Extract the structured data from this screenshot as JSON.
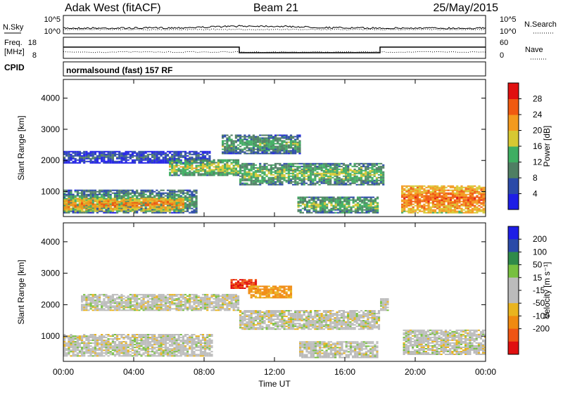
{
  "header": {
    "station": "Adak West (fitACF)",
    "beam": "Beam 21",
    "date": "25/May/2015"
  },
  "top_panels": {
    "nsky_label": "N.Sky",
    "nsearch_label": "N.Search",
    "noise_ticks": [
      "10^5",
      "10^0"
    ],
    "freq_label_1": "Freq.",
    "freq_label_2": "[MHz]",
    "freq_ticks": [
      "18",
      "8"
    ],
    "nave_label": "Nave",
    "nave_ticks": [
      "60",
      "0"
    ],
    "cpid_label": "CPID",
    "cpid_text": "normalsound (fast) 157 RF"
  },
  "colors": {
    "power": [
      "#1e1ee6",
      "#2b4aa8",
      "#4f7e63",
      "#3fae62",
      "#d7c832",
      "#f39a1d",
      "#f05a10",
      "#e01010"
    ],
    "velocity": [
      "#1e1ee6",
      "#2b4aa8",
      "#2f8a4a",
      "#77c040",
      "#bbbbbb",
      "#bbbbbb",
      "#e9b41e",
      "#f08a10",
      "#ef5514",
      "#e01010"
    ]
  },
  "chart_data": [
    {
      "type": "heatmap",
      "title": "Power",
      "ylabel": "Slant Range [km]",
      "xlabel": "Time UT",
      "x_ticks": [
        "00:00",
        "04:00",
        "08:00",
        "12:00",
        "16:00",
        "20:00",
        "00:00"
      ],
      "y_ticks": [
        "1000",
        "2000",
        "3000",
        "4000"
      ],
      "ylim": [
        200,
        4600
      ],
      "colorbar": {
        "label": "Power [dB]",
        "ticks": [
          "4",
          "8",
          "12",
          "16",
          "20",
          "24",
          "28"
        ],
        "range": [
          0,
          32
        ]
      },
      "features": [
        {
          "from_hr": 0.0,
          "to_hr": 7.6,
          "range_from_km": 300,
          "range_to_km": 1050,
          "level_db": 14
        },
        {
          "from_hr": 0.0,
          "to_hr": 6.8,
          "range_from_km": 350,
          "range_to_km": 800,
          "level_db": 24
        },
        {
          "from_hr": 0.0,
          "to_hr": 8.3,
          "range_from_km": 1900,
          "range_to_km": 2300,
          "level_db": 8
        },
        {
          "from_hr": 6.0,
          "to_hr": 10.0,
          "range_from_km": 1500,
          "range_to_km": 2000,
          "level_db": 18
        },
        {
          "from_hr": 9.0,
          "to_hr": 13.5,
          "range_from_km": 2200,
          "range_to_km": 2800,
          "level_db": 14
        },
        {
          "from_hr": 10.0,
          "to_hr": 18.2,
          "range_from_km": 1200,
          "range_to_km": 1900,
          "level_db": 16
        },
        {
          "from_hr": 13.3,
          "to_hr": 17.9,
          "range_from_km": 300,
          "range_to_km": 800,
          "level_db": 16
        },
        {
          "from_hr": 19.2,
          "to_hr": 24.0,
          "range_from_km": 300,
          "range_to_km": 1200,
          "level_db": 26
        }
      ]
    },
    {
      "type": "heatmap",
      "title": "Velocity",
      "ylabel": "Slant Range [km]",
      "xlabel": "Time UT",
      "x_ticks": [
        "00:00",
        "04:00",
        "08:00",
        "12:00",
        "16:00",
        "20:00",
        "00:00"
      ],
      "y_ticks": [
        "1000",
        "2000",
        "3000",
        "4000"
      ],
      "ylim": [
        200,
        4600
      ],
      "colorbar": {
        "label": "Velocity [m s⁻¹]",
        "ticks": [
          "200",
          "100",
          "50",
          "15",
          "-15",
          "-50",
          "-100",
          "-200"
        ],
        "range": [
          -250,
          250
        ]
      },
      "features": [
        {
          "from_hr": 0.0,
          "to_hr": 8.5,
          "range_from_km": 350,
          "range_to_km": 1050,
          "velocity_ms": 0
        },
        {
          "from_hr": 1.0,
          "to_hr": 10.0,
          "range_from_km": 1800,
          "range_to_km": 2300,
          "velocity_ms": 0
        },
        {
          "from_hr": 9.5,
          "to_hr": 11.0,
          "range_from_km": 2500,
          "range_to_km": 2800,
          "velocity_ms": -200
        },
        {
          "from_hr": 10.5,
          "to_hr": 13.0,
          "range_from_km": 2200,
          "range_to_km": 2600,
          "velocity_ms": -60
        },
        {
          "from_hr": 10.0,
          "to_hr": 18.0,
          "range_from_km": 1200,
          "range_to_km": 1800,
          "velocity_ms": 0
        },
        {
          "from_hr": 13.4,
          "to_hr": 17.9,
          "range_from_km": 300,
          "range_to_km": 800,
          "velocity_ms": 0
        },
        {
          "from_hr": 18.0,
          "to_hr": 18.5,
          "range_from_km": 1800,
          "range_to_km": 2200,
          "velocity_ms": 0
        },
        {
          "from_hr": 19.3,
          "to_hr": 24.0,
          "range_from_km": 400,
          "range_to_km": 1200,
          "velocity_ms": 0
        }
      ]
    }
  ]
}
